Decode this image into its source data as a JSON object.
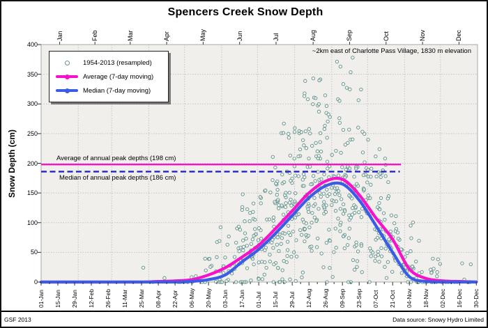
{
  "title": "Spencers Creek Snow Depth",
  "footer": {
    "left": "GSF 2013",
    "right": "Data source: Snowy Hydro Limited"
  },
  "legend": {
    "items": [
      {
        "label": "1954-2013 (resampled)",
        "marker": "circle",
        "color": "#6a938e"
      },
      {
        "label": "Average (7-day moving)",
        "marker": "line",
        "color": "#f711c9"
      },
      {
        "label": "Median (7-day moving)",
        "marker": "line",
        "color": "#3b5ce4"
      }
    ]
  },
  "chart_data": {
    "type": "scatter",
    "title": "Spencers Creek Snow Depth",
    "annotation": "~2km east of Charlotte Pass Village, 1830 m elevation",
    "ylabel": "Snow Depth (cm)",
    "ylim": [
      0,
      400
    ],
    "y_ticks": [
      0,
      50,
      100,
      150,
      200,
      250,
      300,
      350,
      400
    ],
    "grid": true,
    "legend_position": "top-left",
    "x_axis": {
      "unit": "day-of-year",
      "range_days": [
        0,
        365
      ],
      "tick_days": [
        0,
        14,
        28,
        42,
        56,
        70,
        84,
        98,
        112,
        126,
        140,
        154,
        168,
        182,
        196,
        210,
        224,
        238,
        252,
        266,
        280,
        294,
        308,
        322,
        336,
        350,
        364
      ],
      "tick_labels": [
        "01-Jan",
        "15-Jan",
        "29-Jan",
        "12-Feb",
        "26-Feb",
        "11-Mar",
        "25-Mar",
        "08-Apr",
        "22-Apr",
        "06-May",
        "20-May",
        "03-Jun",
        "17-Jun",
        "01-Jul",
        "15-Jul",
        "29-Jul",
        "12-Aug",
        "26-Aug",
        "09-Sep",
        "23-Sep",
        "07-Oct",
        "21-Oct",
        "04-Nov",
        "18-Nov",
        "02-Dec",
        "16-Dec",
        "30-Dec"
      ],
      "minor_tick_step_days": 7,
      "month_labels": [
        "Jan",
        "Feb",
        "Mar",
        "Apr",
        "May",
        "Jun",
        "Jul",
        "Aug",
        "Sep",
        "Oct",
        "Nov",
        "Dec"
      ],
      "month_mid_days": [
        15.5,
        45,
        74.5,
        105,
        135.5,
        166,
        196.5,
        227.5,
        258,
        288.5,
        319,
        349.5
      ],
      "month_boundary_days": [
        31,
        59,
        90,
        120,
        151,
        181,
        212,
        243,
        273,
        304,
        334
      ]
    },
    "reference_lines": [
      {
        "name": "average-annual-peak",
        "label": "Average of annual peak depths (198 cm)",
        "value": 198,
        "style": "solid",
        "color": "#f711c9",
        "start_day": 0,
        "end_day": 301
      },
      {
        "name": "median-annual-peak",
        "label": "Median of annual peak depths (186 cm)",
        "value": 186,
        "style": "dashed",
        "color": "#2323cc",
        "start_day": 0,
        "end_day": 300
      }
    ],
    "series": [
      {
        "name": "Average (7-day moving)",
        "color": "#f711c9",
        "width": 4.2,
        "days": [
          0,
          14,
          28,
          42,
          56,
          70,
          84,
          98,
          112,
          126,
          140,
          154,
          168,
          182,
          196,
          210,
          224,
          238,
          252,
          266,
          280,
          294,
          308,
          322,
          336,
          350,
          364
        ],
        "values": [
          0,
          0,
          0,
          0,
          0,
          0,
          0,
          1,
          2,
          4,
          12,
          24,
          42,
          62,
          90,
          120,
          150,
          170,
          173,
          147,
          108,
          72,
          22,
          6,
          2,
          1,
          0
        ]
      },
      {
        "name": "Median (7-day moving)",
        "color": "#3b5ce4",
        "width": 4.2,
        "days": [
          0,
          14,
          28,
          42,
          56,
          70,
          84,
          98,
          112,
          126,
          140,
          154,
          168,
          182,
          196,
          210,
          224,
          238,
          252,
          266,
          280,
          294,
          308,
          322,
          336,
          350,
          364
        ],
        "values": [
          0,
          0,
          0,
          0,
          0,
          0,
          0,
          0,
          0,
          1,
          4,
          12,
          34,
          55,
          82,
          112,
          142,
          162,
          165,
          138,
          95,
          50,
          9,
          1,
          0,
          0,
          0
        ]
      }
    ],
    "scatter": {
      "name": "1954-2013 (resampled)",
      "note": "individual resampled daily depths 1954-2013; point cloud approximated procedurally",
      "color": "#5f8f8a",
      "fill": "#f7faf9",
      "radius": 2.2,
      "seed": 42,
      "max_value": 378,
      "bucket_days": [
        0,
        14,
        28,
        42,
        56,
        70,
        84,
        98,
        112,
        126,
        140,
        154,
        168,
        182,
        196,
        210,
        224,
        238,
        252,
        266,
        280,
        294,
        308,
        322,
        336,
        350,
        364
      ],
      "bucket_counts": [
        0,
        0,
        0,
        0,
        0,
        0,
        1,
        2,
        3,
        6,
        12,
        22,
        34,
        46,
        56,
        62,
        66,
        66,
        62,
        56,
        50,
        40,
        28,
        16,
        9,
        5,
        3
      ]
    },
    "plot_style": {
      "plot_bg": "#f0efec",
      "plot_border": "#a9a9a9",
      "grid_color": "#c3c3c3",
      "tick_color": "#333333"
    }
  }
}
